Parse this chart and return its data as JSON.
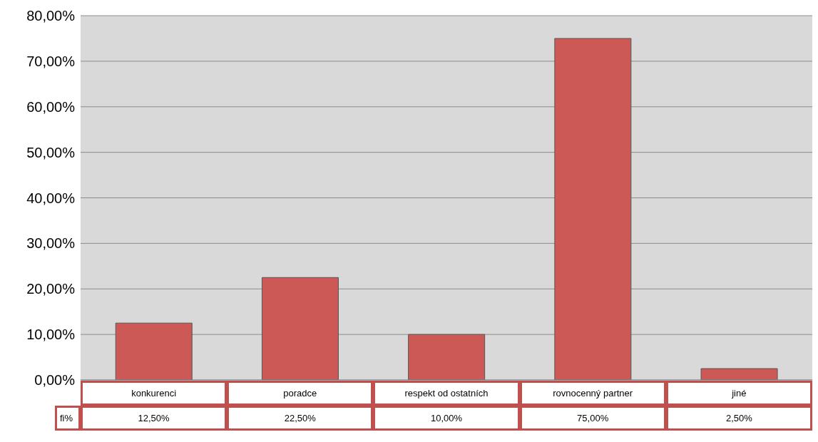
{
  "chart_data": {
    "type": "bar",
    "categories": [
      "konkurenci",
      "poradce",
      "respekt od ostatních",
      "rovnocenný partner",
      "jiné"
    ],
    "series": [
      {
        "name": "fi%",
        "color": "#cd5957",
        "values": [
          12.5,
          22.5,
          10,
          75,
          2.5
        ],
        "value_labels": [
          "12,50%",
          "22,50%",
          "10,00%",
          "75,00%",
          "2,50%"
        ]
      }
    ],
    "ylim": [
      0,
      80
    ],
    "yticks": [
      {
        "value": 0,
        "label": "0,00%"
      },
      {
        "value": 10,
        "label": "10,00%"
      },
      {
        "value": 20,
        "label": "20,00%"
      },
      {
        "value": 30,
        "label": "30,00%"
      },
      {
        "value": 40,
        "label": "40,00%"
      },
      {
        "value": 50,
        "label": "50,00%"
      },
      {
        "value": 60,
        "label": "60,00%"
      },
      {
        "value": 70,
        "label": "70,00%"
      },
      {
        "value": 80,
        "label": "80,00%"
      }
    ],
    "grid": "y"
  }
}
